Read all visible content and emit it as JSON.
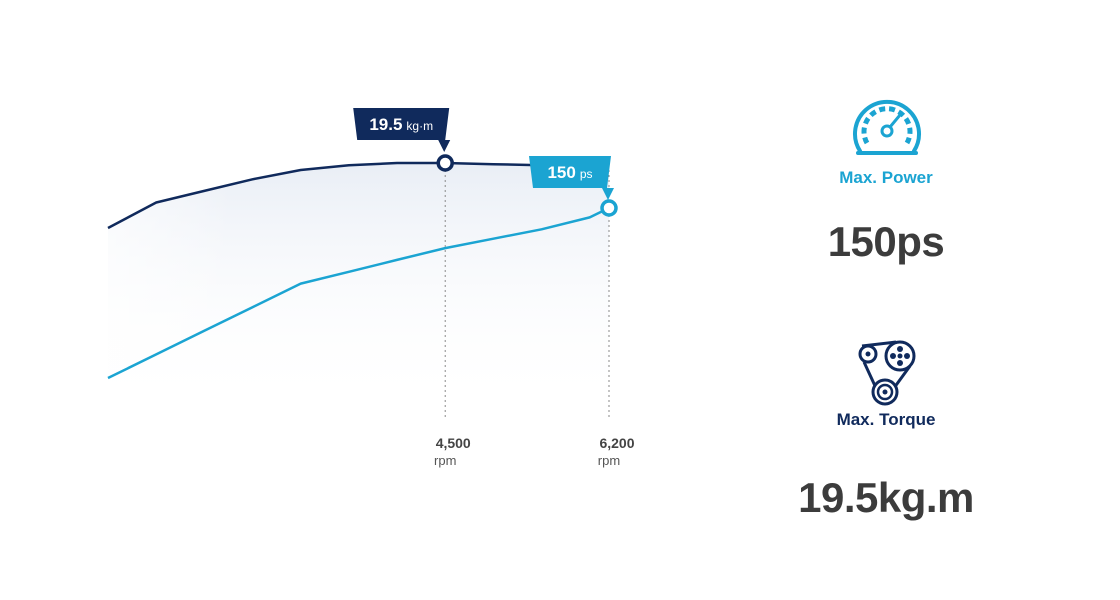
{
  "chart_data": {
    "type": "line",
    "x": [
      1000,
      1500,
      2000,
      2500,
      3000,
      3500,
      4000,
      4500,
      5000,
      5500,
      6000,
      6200
    ],
    "series": [
      {
        "values": [
          0.72,
          0.83,
          0.88,
          0.93,
          0.97,
          0.99,
          1.0,
          1.0,
          0.995,
          0.99,
          0.985,
          0.985
        ],
        "color": "#102a5c",
        "callout": {
          "x": 4500,
          "value": "19.5",
          "unit": "kg·m"
        }
      },
      {
        "values": [
          0.28,
          0.38,
          0.48,
          0.58,
          0.68,
          0.73,
          0.78,
          0.83,
          0.87,
          0.91,
          0.96,
          1.0
        ],
        "color": "#1ba4d2",
        "callout": {
          "x": 6200,
          "value": "150",
          "unit": "ps"
        }
      }
    ],
    "x_ticks": [
      {
        "x": 4500,
        "label": "4,500",
        "unit": "rpm"
      },
      {
        "x": 6200,
        "label": "6,200",
        "unit": "rpm"
      }
    ],
    "grid": false,
    "legend": "none"
  },
  "stats": {
    "power": {
      "label": "Max. Power",
      "value": "150ps",
      "icon": "speedometer-icon",
      "color": "#1ba4d2"
    },
    "torque": {
      "label": "Max. Torque",
      "value": "19.5kg.m",
      "icon": "engine-belt-icon",
      "color": "#102a5c"
    }
  }
}
